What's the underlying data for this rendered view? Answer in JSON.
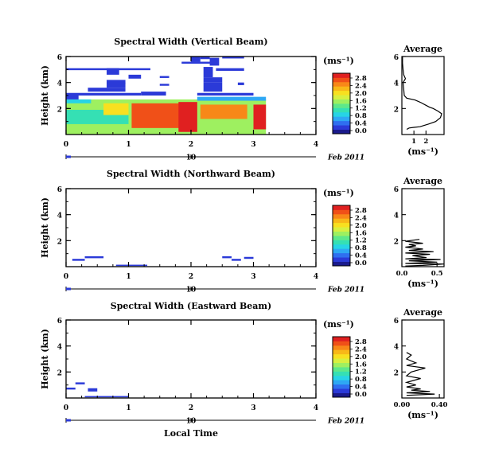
{
  "figure": {
    "xlabel": "Local Time",
    "date_center": "10",
    "date_label": "Feb 2011",
    "average_title": "Average",
    "avg_unit_label": "(ms⁻¹)",
    "cb_unit_label": "(ms⁻¹)"
  },
  "colorbar": {
    "ticks": [
      "2.8",
      "2.4",
      "2.0",
      "1.6",
      "1.2",
      "0.8",
      "0.4",
      "0.0"
    ],
    "colors": [
      "#1a1a8c",
      "#2b3ad8",
      "#2f6ff0",
      "#2ea8f4",
      "#27d4e6",
      "#35e0b4",
      "#5ee88a",
      "#9ef060",
      "#d8f040",
      "#f8e020",
      "#f8b818",
      "#f88818",
      "#f05018",
      "#e02020"
    ]
  },
  "chart_data": [
    {
      "type": "heatmap",
      "title": "Spectral Width (Vertical Beam)",
      "ylabel": "Height (km)",
      "xlim": [
        0,
        4
      ],
      "ylim": [
        0,
        6
      ],
      "xticks": [
        "0",
        "1",
        "2",
        "3",
        "4"
      ],
      "yticks": [
        {
          "v": 6,
          "label": "6"
        },
        {
          "v": 4,
          "label": "4"
        },
        {
          "v": 2,
          "label": "2"
        }
      ],
      "colorbar_range": [
        0.0,
        2.8
      ],
      "cells": [
        {
          "x0": 0.0,
          "x1": 3.2,
          "y0": 0.0,
          "y1": 2.7,
          "v": 1.5
        },
        {
          "x0": 1.05,
          "x1": 2.0,
          "y0": 0.5,
          "y1": 2.4,
          "v": 2.4
        },
        {
          "x0": 1.8,
          "x1": 2.1,
          "y0": 0.2,
          "y1": 2.5,
          "v": 2.6
        },
        {
          "x0": 2.15,
          "x1": 2.9,
          "y0": 1.2,
          "y1": 2.3,
          "v": 2.3
        },
        {
          "x0": 3.0,
          "x1": 3.2,
          "y0": 0.4,
          "y1": 2.3,
          "v": 2.6
        },
        {
          "x0": 0.0,
          "x1": 1.0,
          "y0": 0.8,
          "y1": 1.9,
          "v": 1.0
        },
        {
          "x0": 0.6,
          "x1": 1.0,
          "y0": 1.5,
          "y1": 2.4,
          "v": 1.8
        },
        {
          "x0": 0.0,
          "x1": 0.4,
          "y0": 2.4,
          "y1": 2.7,
          "v": 0.9
        },
        {
          "x0": 2.1,
          "x1": 3.2,
          "y0": 2.6,
          "y1": 2.9,
          "v": 0.6
        },
        {
          "x0": 0.0,
          "x1": 0.2,
          "y0": 2.7,
          "y1": 3.1,
          "v": 0.3
        },
        {
          "x0": 0.0,
          "x1": 1.2,
          "y0": 3.0,
          "y1": 3.2,
          "v": 0.3
        },
        {
          "x0": 1.2,
          "x1": 1.6,
          "y0": 3.0,
          "y1": 3.3,
          "v": 0.3
        },
        {
          "x0": 2.1,
          "x1": 3.0,
          "y0": 3.0,
          "y1": 3.2,
          "v": 0.3
        },
        {
          "x0": 0.35,
          "x1": 0.95,
          "y0": 3.3,
          "y1": 3.6,
          "v": 0.2
        },
        {
          "x0": 0.65,
          "x1": 0.95,
          "y0": 3.6,
          "y1": 4.0,
          "v": 0.2
        },
        {
          "x0": 0.65,
          "x1": 0.95,
          "y0": 3.9,
          "y1": 4.2,
          "v": 0.3
        },
        {
          "x0": 1.5,
          "x1": 1.65,
          "y0": 3.75,
          "y1": 3.9,
          "v": 0.3
        },
        {
          "x0": 2.2,
          "x1": 2.5,
          "y0": 3.3,
          "y1": 4.0,
          "v": 0.2
        },
        {
          "x0": 2.2,
          "x1": 2.5,
          "y0": 4.0,
          "y1": 4.4,
          "v": 0.2
        },
        {
          "x0": 2.2,
          "x1": 2.35,
          "y0": 4.4,
          "y1": 5.2,
          "v": 0.2
        },
        {
          "x0": 2.75,
          "x1": 2.85,
          "y0": 3.8,
          "y1": 4.0,
          "v": 0.3
        },
        {
          "x0": 1.5,
          "x1": 1.65,
          "y0": 4.35,
          "y1": 4.5,
          "v": 0.3
        },
        {
          "x0": 1.0,
          "x1": 1.2,
          "y0": 4.3,
          "y1": 4.6,
          "v": 0.3
        },
        {
          "x0": 0.65,
          "x1": 0.85,
          "y0": 4.6,
          "y1": 5.1,
          "v": 0.2
        },
        {
          "x0": 0.0,
          "x1": 1.35,
          "y0": 4.95,
          "y1": 5.1,
          "v": 0.3
        },
        {
          "x0": 2.4,
          "x1": 2.85,
          "y0": 4.9,
          "y1": 5.1,
          "v": 0.3
        },
        {
          "x0": 1.85,
          "x1": 2.35,
          "y0": 5.45,
          "y1": 5.6,
          "v": 0.3
        },
        {
          "x0": 2.0,
          "x1": 2.15,
          "y0": 5.6,
          "y1": 6.0,
          "v": 0.2
        },
        {
          "x0": 2.15,
          "x1": 2.3,
          "y0": 5.8,
          "y1": 6.0,
          "v": 0.2
        },
        {
          "x0": 2.3,
          "x1": 2.45,
          "y0": 5.3,
          "y1": 5.9,
          "v": 0.2
        },
        {
          "x0": 2.5,
          "x1": 2.85,
          "y0": 5.85,
          "y1": 6.0,
          "v": 0.3
        }
      ],
      "average": {
        "xlim": [
          0,
          3.5
        ],
        "xticks": [
          {
            "v": 1,
            "label": "1"
          },
          {
            "v": 2,
            "label": "2"
          }
        ],
        "ylim": [
          0,
          6
        ],
        "profile": [
          [
            0.4,
            0.4
          ],
          [
            0.6,
            0.5
          ],
          [
            1.0,
            0.55
          ],
          [
            1.5,
            0.6
          ],
          [
            2.2,
            0.8
          ],
          [
            2.8,
            1.0
          ],
          [
            3.2,
            1.3
          ],
          [
            3.3,
            1.6
          ],
          [
            3.0,
            1.8
          ],
          [
            2.6,
            2.0
          ],
          [
            2.3,
            2.1
          ],
          [
            2.0,
            2.25
          ],
          [
            1.6,
            2.45
          ],
          [
            1.1,
            2.65
          ],
          [
            0.4,
            2.8
          ],
          [
            0.2,
            3.0
          ],
          [
            0.15,
            3.5
          ],
          [
            0.1,
            4.0
          ],
          [
            0.3,
            4.3
          ],
          [
            0.15,
            4.6
          ],
          [
            0.1,
            5.0
          ],
          [
            0.05,
            5.5
          ],
          [
            0.05,
            6.0
          ]
        ]
      }
    },
    {
      "type": "heatmap",
      "title": "Spectral Width (Northward Beam)",
      "ylabel": "Height (km)",
      "xlim": [
        0,
        4
      ],
      "ylim": [
        0,
        6
      ],
      "xticks": [
        "0",
        "1",
        "2",
        "3",
        "4"
      ],
      "yticks": [
        {
          "v": 6,
          "label": "6"
        },
        {
          "v": 4,
          "label": "4"
        },
        {
          "v": 2,
          "label": "2"
        }
      ],
      "colorbar_range": [
        0.0,
        2.8
      ],
      "cells": [
        {
          "x0": 0.1,
          "x1": 0.3,
          "y0": 0.45,
          "y1": 0.6,
          "v": 0.2
        },
        {
          "x0": 0.3,
          "x1": 0.6,
          "y0": 0.65,
          "y1": 0.8,
          "v": 0.3
        },
        {
          "x0": 0.8,
          "x1": 1.3,
          "y0": 0.05,
          "y1": 0.15,
          "v": 0.3
        },
        {
          "x0": 2.5,
          "x1": 2.65,
          "y0": 0.65,
          "y1": 0.8,
          "v": 0.3
        },
        {
          "x0": 2.65,
          "x1": 2.8,
          "y0": 0.45,
          "y1": 0.6,
          "v": 0.3
        },
        {
          "x0": 2.85,
          "x1": 3.0,
          "y0": 0.6,
          "y1": 0.75,
          "v": 0.3
        }
      ],
      "average": {
        "xlim": [
          0,
          0.6
        ],
        "xticks": [
          {
            "v": 0,
            "label": "0.0"
          },
          {
            "v": 0.5,
            "label": "0.5"
          }
        ],
        "ylim": [
          0,
          6
        ],
        "profile": [
          [
            0.05,
            0.05
          ],
          [
            0.3,
            0.1
          ],
          [
            0.6,
            0.2
          ],
          [
            0.05,
            0.25
          ],
          [
            0.5,
            0.35
          ],
          [
            0.1,
            0.45
          ],
          [
            0.55,
            0.55
          ],
          [
            0.05,
            0.6
          ],
          [
            0.35,
            0.7
          ],
          [
            0.15,
            0.85
          ],
          [
            0.4,
            0.95
          ],
          [
            0.05,
            1.05
          ],
          [
            0.45,
            1.15
          ],
          [
            0.1,
            1.25
          ],
          [
            0.3,
            1.35
          ],
          [
            0.05,
            1.5
          ],
          [
            0.2,
            1.6
          ],
          [
            0.1,
            1.7
          ],
          [
            0.3,
            1.8
          ],
          [
            0.05,
            1.95
          ],
          [
            0.25,
            2.1
          ]
        ]
      }
    },
    {
      "type": "heatmap",
      "title": "Spectral Width (Eastward Beam)",
      "ylabel": "Height (km)",
      "xlim": [
        0,
        4
      ],
      "ylim": [
        0,
        6
      ],
      "xticks": [
        "0",
        "1",
        "2",
        "3",
        "4"
      ],
      "yticks": [
        {
          "v": 6,
          "label": "6"
        },
        {
          "v": 4,
          "label": "4"
        },
        {
          "v": 2,
          "label": "2"
        }
      ],
      "colorbar_range": [
        0.0,
        2.8
      ],
      "cells": [
        {
          "x0": 0.15,
          "x1": 0.3,
          "y0": 1.05,
          "y1": 1.2,
          "v": 0.3
        },
        {
          "x0": 0.0,
          "x1": 0.15,
          "y0": 0.65,
          "y1": 0.8,
          "v": 0.3
        },
        {
          "x0": 0.35,
          "x1": 0.5,
          "y0": 0.5,
          "y1": 0.75,
          "v": 0.2
        },
        {
          "x0": 0.3,
          "x1": 1.0,
          "y0": 0.05,
          "y1": 0.15,
          "v": 0.3
        }
      ],
      "average": {
        "xlim": [
          0,
          0.45
        ],
        "xticks": [
          {
            "v": 0,
            "label": "0.00"
          },
          {
            "v": 0.4,
            "label": "0.40"
          }
        ],
        "ylim": [
          0,
          6
        ],
        "profile": [
          [
            0.05,
            0.2
          ],
          [
            0.35,
            0.3
          ],
          [
            0.05,
            0.4
          ],
          [
            0.3,
            0.5
          ],
          [
            0.1,
            0.6
          ],
          [
            0.2,
            0.7
          ],
          [
            0.05,
            0.85
          ],
          [
            0.15,
            1.0
          ],
          [
            0.05,
            1.2
          ],
          [
            0.2,
            1.5
          ],
          [
            0.05,
            1.7
          ],
          [
            0.1,
            2.0
          ],
          [
            0.25,
            2.3
          ],
          [
            0.05,
            2.5
          ],
          [
            0.15,
            2.7
          ],
          [
            0.05,
            3.0
          ],
          [
            0.1,
            3.3
          ],
          [
            0.05,
            3.5
          ]
        ]
      }
    }
  ]
}
